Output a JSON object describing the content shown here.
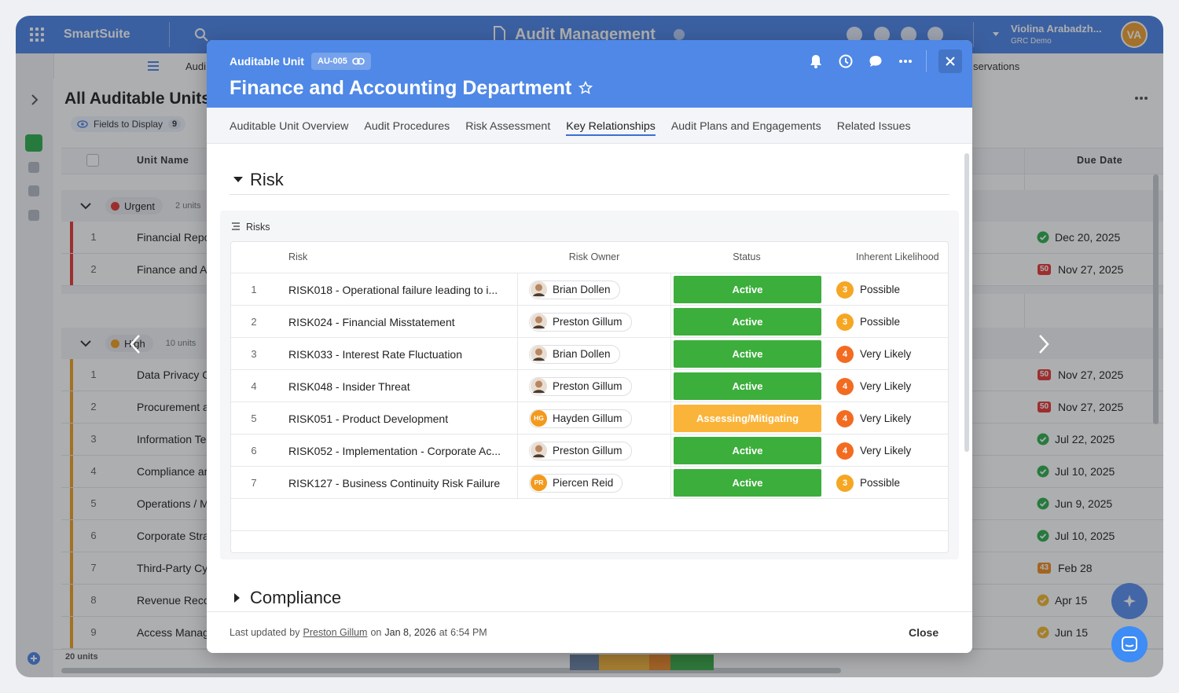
{
  "app": {
    "name": "SmartSuite",
    "title": "Audit Management",
    "user_name": "Violina Arabadzh...",
    "user_org": "GRC Demo",
    "user_initials": "VA",
    "nav_left": "Audi",
    "nav_right": "servations"
  },
  "background": {
    "view_title": "All Auditable Units",
    "fields_label": "Fields to Display",
    "fields_count": "9",
    "columns": [
      "Unit Name",
      "Due Date"
    ],
    "groups": [
      {
        "label": "Urgent",
        "count": "2 units",
        "color": "#e53935",
        "rows": [
          {
            "index": "1",
            "name": "Financial Repo",
            "due": "Dec 20, 2025",
            "icon_color": "#2eae4e"
          },
          {
            "index": "2",
            "name": "Finance and A",
            "due": "Nov 27, 2025",
            "badge": "50",
            "icon_color": "#e53935"
          }
        ]
      },
      {
        "label": "High",
        "count": "10 units",
        "color": "#f0a020",
        "rows": [
          {
            "index": "1",
            "name": "Data Privacy C",
            "due": "Nov 27, 2025",
            "badge": "50",
            "icon_color": "#e53935"
          },
          {
            "index": "2",
            "name": "Procurement a",
            "due": "Nov 27, 2025",
            "badge": "50",
            "icon_color": "#e53935"
          },
          {
            "index": "3",
            "name": "Information Te",
            "due": "Jul 22, 2025",
            "icon_color": "#2eae4e"
          },
          {
            "index": "4",
            "name": "Compliance ar",
            "due": "Jul 10, 2025",
            "icon_color": "#2eae4e"
          },
          {
            "index": "5",
            "name": "Operations / M",
            "due": "Jun 9, 2025",
            "icon_color": "#2eae4e"
          },
          {
            "index": "6",
            "name": "Corporate Stra",
            "due": "Jul 10, 2025",
            "icon_color": "#2eae4e"
          },
          {
            "index": "7",
            "name": "Third-Party Cy",
            "due": "Feb 28",
            "badge": "43",
            "icon_color": "#f08c1f"
          },
          {
            "index": "8",
            "name": "Revenue Reco",
            "due": "Apr 15",
            "icon_color": "#f2b630"
          },
          {
            "index": "9",
            "name": "Access Manag",
            "due": "Jun 15",
            "icon_color": "#f2b630"
          }
        ]
      }
    ],
    "footer": "20 units"
  },
  "modal": {
    "label": "Auditable Unit",
    "record_id": "AU-005",
    "title": "Finance and Accounting Department",
    "tabs": [
      "Auditable Unit Overview",
      "Audit Procedures",
      "Risk Assessment",
      "Key Relationships",
      "Audit Plans and Engagements",
      "Related Issues"
    ],
    "active_tab": 3,
    "sections": [
      {
        "title": "Risk",
        "expanded": true
      },
      {
        "title": "Compliance",
        "expanded": false
      }
    ],
    "risk_table": {
      "label": "Risks",
      "columns": [
        "Risk",
        "Risk Owner",
        "Status",
        "Inherent Likelihood"
      ],
      "rows": [
        {
          "index": "1",
          "risk": "RISK018 - Operational failure leading to i...",
          "owner": "Brian Dollen",
          "status": "Active",
          "status_color": "#3cae3c",
          "likelihood_score": "3",
          "likelihood": "Possible",
          "likelihood_color": "#f5a623"
        },
        {
          "index": "2",
          "risk": "RISK024 - Financial Misstatement",
          "owner": "Preston Gillum",
          "status": "Active",
          "status_color": "#3cae3c",
          "likelihood_score": "3",
          "likelihood": "Possible",
          "likelihood_color": "#f5a623"
        },
        {
          "index": "3",
          "risk": "RISK033 - Interest Rate Fluctuation",
          "owner": "Brian Dollen",
          "status": "Active",
          "status_color": "#3cae3c",
          "likelihood_score": "4",
          "likelihood": "Very Likely",
          "likelihood_color": "#f26b21"
        },
        {
          "index": "4",
          "risk": "RISK048 - Insider Threat",
          "owner": "Preston Gillum",
          "status": "Active",
          "status_color": "#3cae3c",
          "likelihood_score": "4",
          "likelihood": "Very Likely",
          "likelihood_color": "#f26b21"
        },
        {
          "index": "5",
          "risk": "RISK051 - Product Development",
          "owner": "Hayden Gillum",
          "owner_initials": "HG",
          "status": "Assessing/Mitigating",
          "status_color": "#fbb43a",
          "likelihood_score": "4",
          "likelihood": "Very Likely",
          "likelihood_color": "#f26b21"
        },
        {
          "index": "6",
          "risk": "RISK052 - Implementation - Corporate Ac...",
          "owner": "Preston Gillum",
          "status": "Active",
          "status_color": "#3cae3c",
          "likelihood_score": "4",
          "likelihood": "Very Likely",
          "likelihood_color": "#f26b21"
        },
        {
          "index": "7",
          "risk": "RISK127 - Business Continuity Risk Failure",
          "owner": "Piercen Reid",
          "owner_initials": "PR",
          "status": "Active",
          "status_color": "#3cae3c",
          "likelihood_score": "3",
          "likelihood": "Possible",
          "likelihood_color": "#f5a623"
        }
      ]
    },
    "footer": {
      "prefix": "Last updated",
      "by": "by",
      "user": "Preston Gillum",
      "on": "on",
      "date": "Jan 8, 2026",
      "at": "at",
      "time": "6:54 PM",
      "close": "Close"
    }
  }
}
